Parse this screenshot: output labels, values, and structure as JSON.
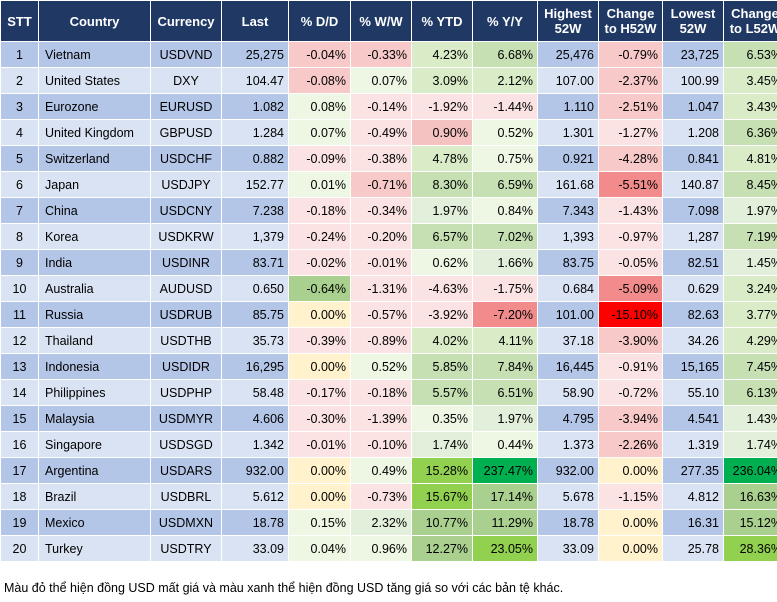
{
  "headers": [
    "STT",
    "Country",
    "Currency",
    "Last",
    "% D/D",
    "% W/W",
    "% YTD",
    "% Y/Y",
    "Highest 52W",
    "Change to H52W",
    "Lowest 52W",
    "Change to L52W"
  ],
  "rows": [
    [
      "1",
      "Vietnam",
      "USDVND",
      "25,275",
      "-0.04%",
      "-0.33%",
      "4.23%",
      "6.68%",
      "25,476",
      "-0.79%",
      "23,725",
      "6.53%"
    ],
    [
      "2",
      "United States",
      "DXY",
      "104.47",
      "-0.08%",
      "0.07%",
      "3.09%",
      "2.12%",
      "107.00",
      "-2.37%",
      "100.99",
      "3.45%"
    ],
    [
      "3",
      "Eurozone",
      "EURUSD",
      "1.082",
      "0.08%",
      "-0.14%",
      "-1.92%",
      "-1.44%",
      "1.110",
      "-2.51%",
      "1.047",
      "3.43%"
    ],
    [
      "4",
      "United Kingdom",
      "GBPUSD",
      "1.284",
      "0.07%",
      "-0.49%",
      "0.90%",
      "0.52%",
      "1.301",
      "-1.27%",
      "1.208",
      "6.36%"
    ],
    [
      "5",
      "Switzerland",
      "USDCHF",
      "0.882",
      "-0.09%",
      "-0.38%",
      "4.78%",
      "0.75%",
      "0.921",
      "-4.28%",
      "0.841",
      "4.81%"
    ],
    [
      "6",
      "Japan",
      "USDJPY",
      "152.77",
      "0.01%",
      "-0.71%",
      "8.30%",
      "6.59%",
      "161.68",
      "-5.51%",
      "140.87",
      "8.45%"
    ],
    [
      "7",
      "China",
      "USDCNY",
      "7.238",
      "-0.18%",
      "-0.34%",
      "1.97%",
      "0.84%",
      "7.343",
      "-1.43%",
      "7.098",
      "1.97%"
    ],
    [
      "8",
      "Korea",
      "USDKRW",
      "1,379",
      "-0.24%",
      "-0.20%",
      "6.57%",
      "7.02%",
      "1,393",
      "-0.97%",
      "1,287",
      "7.19%"
    ],
    [
      "9",
      "India",
      "USDINR",
      "83.71",
      "-0.02%",
      "-0.01%",
      "0.62%",
      "1.66%",
      "83.75",
      "-0.05%",
      "82.51",
      "1.45%"
    ],
    [
      "10",
      "Australia",
      "AUDUSD",
      "0.650",
      "-0.64%",
      "-1.31%",
      "-4.63%",
      "-1.75%",
      "0.684",
      "-5.09%",
      "0.629",
      "3.24%"
    ],
    [
      "11",
      "Russia",
      "USDRUB",
      "85.75",
      "0.00%",
      "-0.57%",
      "-3.92%",
      "-7.20%",
      "101.00",
      "-15.10%",
      "82.63",
      "3.77%"
    ],
    [
      "12",
      "Thailand",
      "USDTHB",
      "35.73",
      "-0.39%",
      "-0.89%",
      "4.02%",
      "4.11%",
      "37.18",
      "-3.90%",
      "34.26",
      "4.29%"
    ],
    [
      "13",
      "Indonesia",
      "USDIDR",
      "16,295",
      "0.00%",
      "0.52%",
      "5.85%",
      "7.84%",
      "16,445",
      "-0.91%",
      "15,165",
      "7.45%"
    ],
    [
      "14",
      "Philippines",
      "USDPHP",
      "58.48",
      "-0.17%",
      "-0.18%",
      "5.57%",
      "6.51%",
      "58.90",
      "-0.72%",
      "55.10",
      "6.13%"
    ],
    [
      "15",
      "Malaysia",
      "USDMYR",
      "4.606",
      "-0.30%",
      "-1.39%",
      "0.35%",
      "1.97%",
      "4.795",
      "-3.94%",
      "4.541",
      "1.43%"
    ],
    [
      "16",
      "Singapore",
      "USDSGD",
      "1.342",
      "-0.01%",
      "-0.10%",
      "1.74%",
      "0.44%",
      "1.373",
      "-2.26%",
      "1.319",
      "1.74%"
    ],
    [
      "17",
      "Argentina",
      "USDARS",
      "932.00",
      "0.00%",
      "0.49%",
      "15.28%",
      "237.47%",
      "932.00",
      "0.00%",
      "277.35",
      "236.04%"
    ],
    [
      "18",
      "Brazil",
      "USDBRL",
      "5.612",
      "0.00%",
      "-0.73%",
      "15.67%",
      "17.14%",
      "5.678",
      "-1.15%",
      "4.812",
      "16.63%"
    ],
    [
      "19",
      "Mexico",
      "USDMXN",
      "18.78",
      "0.15%",
      "2.32%",
      "10.77%",
      "11.29%",
      "18.78",
      "0.00%",
      "16.31",
      "15.12%"
    ],
    [
      "20",
      "Turkey",
      "USDTRY",
      "33.09",
      "0.04%",
      "0.96%",
      "12.27%",
      "23.05%",
      "33.09",
      "0.00%",
      "25.78",
      "28.36%"
    ]
  ],
  "cell_colors": [
    [
      null,
      null,
      null,
      null,
      "#f8c9c9",
      "#f8c9c9",
      "#d9ecc7",
      "#c6e0b4",
      null,
      "#f8c9c9",
      null,
      "#c6e0b4"
    ],
    [
      null,
      null,
      null,
      null,
      "#f8c9c9",
      "#eef6e4",
      "#d9ecc7",
      "#d9ecc7",
      null,
      "#f8c9c9",
      null,
      "#d9ecc7"
    ],
    [
      null,
      null,
      null,
      null,
      "#eef6e4",
      "#fbe3e3",
      "#fbe3e3",
      "#fbe3e3",
      null,
      "#f8c9c9",
      null,
      "#d9ecc7"
    ],
    [
      null,
      null,
      null,
      null,
      "#eef6e4",
      "#fbe3e3",
      "#f5c2c2",
      "#eef6e4",
      null,
      "#fbe3e3",
      null,
      "#c6e0b4"
    ],
    [
      null,
      null,
      null,
      null,
      "#fbe3e3",
      "#fbe3e3",
      "#d9ecc7",
      "#eef6e4",
      null,
      "#f8c9c9",
      null,
      "#d9ecc7"
    ],
    [
      null,
      null,
      null,
      null,
      "#eef6e4",
      "#f8c9c9",
      "#c6e0b4",
      "#c6e0b4",
      null,
      "#f28b8b",
      null,
      "#c6e0b4"
    ],
    [
      null,
      null,
      null,
      null,
      "#fbe3e3",
      "#fbe3e3",
      "#e2efda",
      "#eef6e4",
      null,
      "#fbe3e3",
      null,
      "#e2efda"
    ],
    [
      null,
      null,
      null,
      null,
      "#fbe3e3",
      "#fbe3e3",
      "#c6e0b4",
      "#c6e0b4",
      null,
      "#fbe3e3",
      null,
      "#c6e0b4"
    ],
    [
      null,
      null,
      null,
      null,
      "#fbe3e3",
      "#fbe3e3",
      "#eef6e4",
      "#e2efda",
      null,
      "#fbe3e3",
      null,
      "#e2efda"
    ],
    [
      null,
      null,
      null,
      null,
      "#a9d08e",
      "#fbe3e3",
      "#fbe3e3",
      "#fbe3e3",
      null,
      "#f28b8b",
      null,
      "#d9ecc7"
    ],
    [
      null,
      null,
      null,
      null,
      "#fff2cc",
      "#fbe3e3",
      "#fbe3e3",
      "#f28b8b",
      null,
      "#ff0000",
      null,
      "#d9ecc7"
    ],
    [
      null,
      null,
      null,
      null,
      "#fbe3e3",
      "#fbe3e3",
      "#d9ecc7",
      "#d9ecc7",
      null,
      "#f8c9c9",
      null,
      "#d9ecc7"
    ],
    [
      null,
      null,
      null,
      null,
      "#fff2cc",
      "#eef6e4",
      "#c6e0b4",
      "#c6e0b4",
      null,
      "#fbe3e3",
      null,
      "#c6e0b4"
    ],
    [
      null,
      null,
      null,
      null,
      "#fbe3e3",
      "#fbe3e3",
      "#c6e0b4",
      "#c6e0b4",
      null,
      "#fbe3e3",
      null,
      "#c6e0b4"
    ],
    [
      null,
      null,
      null,
      null,
      "#fbe3e3",
      "#fbe3e3",
      "#eef6e4",
      "#e2efda",
      null,
      "#f8c9c9",
      null,
      "#e2efda"
    ],
    [
      null,
      null,
      null,
      null,
      "#fbe3e3",
      "#fbe3e3",
      "#e2efda",
      "#eef6e4",
      null,
      "#f8c9c9",
      null,
      "#e2efda"
    ],
    [
      null,
      null,
      null,
      null,
      "#fff2cc",
      "#eef6e4",
      "#92d050",
      "#00b050",
      null,
      "#fff2cc",
      null,
      "#00b050"
    ],
    [
      null,
      null,
      null,
      null,
      "#fff2cc",
      "#fbe3e3",
      "#92d050",
      "#a9d08e",
      null,
      "#fbe3e3",
      null,
      "#a9d08e"
    ],
    [
      null,
      null,
      null,
      null,
      "#eef6e4",
      "#e2efda",
      "#a9d08e",
      "#a9d08e",
      null,
      "#fff2cc",
      null,
      "#a9d08e"
    ],
    [
      null,
      null,
      null,
      null,
      "#eef6e4",
      "#eef6e4",
      "#a9d08e",
      "#92d050",
      null,
      "#fff2cc",
      null,
      "#92d050"
    ]
  ],
  "caption": "Màu đỏ thể hiện đồng USD mất giá và màu xanh thể hiện đồng USD tăng giá so với các bản tệ khác."
}
